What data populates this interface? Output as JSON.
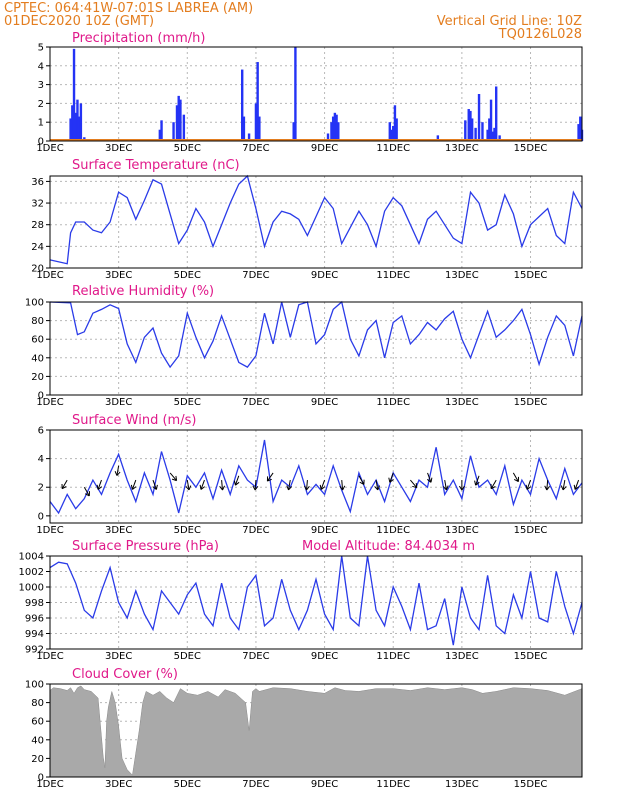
{
  "header": {
    "line1": "CPTEC:   064:41W-07:01S   LABREA (AM)",
    "line2": "01DEC2020 10Z (GMT)",
    "right1": "Vertical Grid Line: 10Z",
    "right2": "TQ0126L028"
  },
  "chart_data": [
    {
      "id": "precip",
      "type": "bar",
      "title": "Precipitation (mm/h)",
      "ylim": [
        0,
        5
      ],
      "yticks": [
        0,
        1,
        2,
        3,
        4,
        5
      ],
      "xlim": [
        0,
        15.5
      ],
      "xtick_labels": [
        "1DEC",
        "3DEC",
        "5DEC",
        "7DEC",
        "9DEC",
        "11DEC",
        "13DEC",
        "15DEC"
      ],
      "xtick_positions": [
        0,
        2,
        4,
        6,
        8,
        10,
        12,
        14
      ],
      "x": [
        0.6,
        0.65,
        0.7,
        0.75,
        0.8,
        0.85,
        0.9,
        1.0,
        1.05,
        3.2,
        3.25,
        3.6,
        3.7,
        3.75,
        3.8,
        3.9,
        5.6,
        5.65,
        5.8,
        6.0,
        6.05,
        6.1,
        6.5,
        7.1,
        7.15,
        8.1,
        8.2,
        8.25,
        8.3,
        8.35,
        8.4,
        9.9,
        9.95,
        10.0,
        10.05,
        10.1,
        11.3,
        12.1,
        12.2,
        12.25,
        12.3,
        12.4,
        12.5,
        12.6,
        12.75,
        12.8,
        12.85,
        12.9,
        12.95,
        13.0,
        13.1,
        13.3,
        13.35,
        13.4,
        13.6,
        13.7,
        15.4,
        15.45,
        15.5
      ],
      "values": [
        1.2,
        1.9,
        4.9,
        1.5,
        2.2,
        1.3,
        2.0,
        0.2,
        0.1,
        0.6,
        1.1,
        1.0,
        1.9,
        2.4,
        2.2,
        1.4,
        3.8,
        1.3,
        0.4,
        2.0,
        4.2,
        1.3,
        0.1,
        1.0,
        5.0,
        0.4,
        1.0,
        1.3,
        1.5,
        1.4,
        1.0,
        1.0,
        0.6,
        0.8,
        1.9,
        1.2,
        0.3,
        1.1,
        1.7,
        1.6,
        1.2,
        0.7,
        2.5,
        1.0,
        0.6,
        1.2,
        2.2,
        0.5,
        0.7,
        2.9,
        0.3,
        0.1,
        0.1,
        0.1,
        0.1,
        0.1,
        0.9,
        1.3,
        0.6
      ]
    },
    {
      "id": "temp",
      "type": "line",
      "title": "Surface Temperature (nC)",
      "ylim": [
        20,
        37
      ],
      "yticks": [
        20,
        24,
        28,
        32,
        36
      ],
      "xlim": [
        0,
        15.5
      ],
      "xtick_labels": [
        "1DEC",
        "3DEC",
        "5DEC",
        "7DEC",
        "9DEC",
        "11DEC",
        "13DEC",
        "15DEC"
      ],
      "xtick_positions": [
        0,
        2,
        4,
        6,
        8,
        10,
        12,
        14
      ],
      "x": [
        0,
        0.5,
        0.6,
        0.75,
        1.0,
        1.25,
        1.5,
        1.75,
        2.0,
        2.25,
        2.5,
        2.75,
        3.0,
        3.25,
        3.5,
        3.75,
        4.0,
        4.25,
        4.5,
        4.75,
        5.0,
        5.25,
        5.5,
        5.75,
        6.0,
        6.25,
        6.5,
        6.75,
        7.0,
        7.25,
        7.5,
        7.75,
        8.0,
        8.25,
        8.5,
        8.75,
        9.0,
        9.25,
        9.5,
        9.75,
        10.0,
        10.25,
        10.5,
        10.75,
        11.0,
        11.25,
        11.5,
        11.75,
        12.0,
        12.25,
        12.5,
        12.75,
        13.0,
        13.25,
        13.5,
        13.75,
        14.0,
        14.25,
        14.5,
        14.75,
        15.0,
        15.25,
        15.5
      ],
      "y": [
        21.5,
        20.8,
        26.5,
        28.5,
        28.5,
        27.0,
        26.5,
        28.5,
        34.0,
        33.0,
        29.0,
        32.5,
        36.3,
        35.5,
        30.0,
        24.5,
        27.0,
        31.0,
        28.5,
        24.0,
        28.0,
        32.0,
        35.5,
        37.0,
        31.0,
        24.0,
        28.5,
        30.5,
        30.0,
        29.0,
        26.0,
        29.5,
        33.0,
        31.0,
        24.5,
        27.5,
        30.5,
        28.0,
        24.0,
        30.5,
        33.0,
        31.5,
        28.0,
        24.5,
        29.0,
        30.5,
        28.0,
        25.5,
        24.5,
        34.0,
        32.0,
        27.0,
        28.0,
        33.5,
        30.0,
        24.0,
        28.0,
        29.5,
        31.0,
        26.0,
        24.5,
        34.0,
        31.0
      ]
    },
    {
      "id": "rh",
      "type": "line",
      "title": "Relative Humidity (%)",
      "ylim": [
        0,
        100
      ],
      "yticks": [
        0,
        20,
        40,
        60,
        80,
        100
      ],
      "xlim": [
        0,
        15.5
      ],
      "xtick_labels": [
        "1DEC",
        "3DEC",
        "5DEC",
        "7DEC",
        "9DEC",
        "11DEC",
        "13DEC",
        "15DEC"
      ],
      "xtick_positions": [
        0,
        2,
        4,
        6,
        8,
        10,
        12,
        14
      ],
      "x": [
        0,
        0.6,
        0.8,
        1.0,
        1.25,
        1.5,
        1.75,
        2.0,
        2.25,
        2.5,
        2.75,
        3.0,
        3.25,
        3.5,
        3.75,
        4.0,
        4.25,
        4.5,
        4.75,
        5.0,
        5.25,
        5.5,
        5.75,
        6.0,
        6.25,
        6.5,
        6.75,
        7.0,
        7.25,
        7.5,
        7.75,
        8.0,
        8.25,
        8.5,
        8.75,
        9.0,
        9.25,
        9.5,
        9.75,
        10.0,
        10.25,
        10.5,
        10.75,
        11.0,
        11.25,
        11.5,
        11.75,
        12.0,
        12.25,
        12.5,
        12.75,
        13.0,
        13.25,
        13.5,
        13.75,
        14.0,
        14.25,
        14.5,
        14.75,
        15.0,
        15.25,
        15.5
      ],
      "y": [
        100,
        99,
        65,
        68,
        88,
        92,
        97,
        93,
        55,
        35,
        62,
        72,
        45,
        30,
        42,
        88,
        62,
        40,
        58,
        85,
        60,
        35,
        30,
        42,
        88,
        55,
        100,
        62,
        97,
        100,
        55,
        65,
        92,
        100,
        60,
        42,
        70,
        80,
        40,
        78,
        85,
        55,
        65,
        78,
        70,
        82,
        90,
        60,
        40,
        65,
        90,
        62,
        70,
        80,
        92,
        65,
        33,
        62,
        85,
        75,
        42,
        85
      ]
    },
    {
      "id": "wind",
      "type": "line",
      "title": "Surface Wind (m/s)",
      "ylim": [
        -0.5,
        6
      ],
      "yticks": [
        0,
        2,
        4,
        6
      ],
      "xlim": [
        0,
        15.5
      ],
      "xtick_labels": [
        "1DEC",
        "3DEC",
        "5DEC",
        "7DEC",
        "9DEC",
        "11DEC",
        "13DEC",
        "15DEC"
      ],
      "xtick_positions": [
        0,
        2,
        4,
        6,
        8,
        10,
        12,
        14
      ],
      "x": [
        0,
        0.25,
        0.5,
        0.75,
        1.0,
        1.25,
        1.5,
        1.75,
        2.0,
        2.25,
        2.5,
        2.75,
        3.0,
        3.25,
        3.5,
        3.75,
        4.0,
        4.25,
        4.5,
        4.75,
        5.0,
        5.25,
        5.5,
        5.75,
        6.0,
        6.25,
        6.5,
        6.75,
        7.0,
        7.25,
        7.5,
        7.75,
        8.0,
        8.25,
        8.5,
        8.75,
        9.0,
        9.25,
        9.5,
        9.75,
        10.0,
        10.25,
        10.5,
        10.75,
        11.0,
        11.25,
        11.5,
        11.75,
        12.0,
        12.25,
        12.5,
        12.75,
        13.0,
        13.25,
        13.5,
        13.75,
        14.0,
        14.25,
        14.5,
        14.75,
        15.0,
        15.25,
        15.5
      ],
      "y": [
        1.0,
        0.2,
        1.5,
        0.5,
        1.2,
        2.5,
        1.5,
        3.0,
        4.3,
        2.5,
        1.0,
        3.0,
        1.5,
        4.5,
        2.5,
        0.2,
        2.8,
        2.0,
        3.0,
        1.2,
        3.2,
        1.5,
        3.5,
        2.5,
        2.0,
        5.3,
        1.0,
        2.5,
        2.0,
        3.5,
        1.5,
        2.2,
        1.5,
        3.5,
        1.8,
        0.3,
        3.0,
        1.5,
        2.5,
        1.0,
        3.0,
        2.0,
        1.0,
        2.5,
        2.0,
        4.8,
        1.5,
        2.5,
        1.2,
        4.2,
        2.0,
        2.5,
        1.5,
        3.5,
        0.8,
        2.5,
        1.5,
        4.0,
        2.5,
        1.2,
        3.3,
        1.5,
        2.3
      ],
      "barbs_x": [
        0.5,
        1.0,
        1.5,
        2.0,
        2.5,
        3.0,
        3.5,
        4.0,
        4.5,
        5.0,
        5.5,
        6.0,
        6.5,
        7.0,
        7.5,
        8.0,
        8.5,
        9.0,
        9.5,
        10.0,
        10.5,
        11.0,
        11.5,
        12.0,
        12.5,
        13.0,
        13.5,
        14.0,
        14.5,
        15.0,
        15.4
      ],
      "barbs_y": [
        2.5,
        2.0,
        2.5,
        3.5,
        2.5,
        2.5,
        3.0,
        2.5,
        2.5,
        2.5,
        2.8,
        2.5,
        3.0,
        2.5,
        2.5,
        2.5,
        2.5,
        2.8,
        2.5,
        3.0,
        2.5,
        3.0,
        2.5,
        2.5,
        2.8,
        2.5,
        3.0,
        2.5,
        2.5,
        2.5,
        2.5
      ],
      "barbs_dir": [
        210,
        150,
        200,
        190,
        200,
        160,
        140,
        170,
        200,
        175,
        200,
        185,
        215,
        190,
        185,
        200,
        175,
        150,
        170,
        200,
        140,
        160,
        170,
        180,
        200,
        210,
        150,
        200,
        185,
        190,
        200
      ]
    },
    {
      "id": "pres",
      "type": "line",
      "title": "Surface Pressure (hPa)",
      "subtitle": "Model Altitude: 84.4034 m",
      "ylim": [
        992,
        1004
      ],
      "yticks": [
        992,
        994,
        996,
        998,
        1000,
        1002,
        1004
      ],
      "xlim": [
        0,
        15.5
      ],
      "xtick_labels": [
        "1DEC",
        "3DEC",
        "5DEC",
        "7DEC",
        "9DEC",
        "11DEC",
        "13DEC",
        "15DEC"
      ],
      "xtick_positions": [
        0,
        2,
        4,
        6,
        8,
        10,
        12,
        14
      ],
      "x": [
        0,
        0.25,
        0.5,
        0.75,
        1.0,
        1.25,
        1.5,
        1.75,
        2.0,
        2.25,
        2.5,
        2.75,
        3.0,
        3.25,
        3.5,
        3.75,
        4.0,
        4.25,
        4.5,
        4.75,
        5.0,
        5.25,
        5.5,
        5.75,
        6.0,
        6.25,
        6.5,
        6.75,
        7.0,
        7.25,
        7.5,
        7.75,
        8.0,
        8.25,
        8.5,
        8.75,
        9.0,
        9.25,
        9.5,
        9.75,
        10.0,
        10.25,
        10.5,
        10.75,
        11.0,
        11.25,
        11.5,
        11.75,
        12.0,
        12.25,
        12.5,
        12.75,
        13.0,
        13.25,
        13.5,
        13.75,
        14.0,
        14.25,
        14.5,
        14.75,
        15.0,
        15.25,
        15.5
      ],
      "y": [
        1002.5,
        1003.2,
        1003.0,
        1000.5,
        997.0,
        996.0,
        999.5,
        1002.5,
        998.0,
        996.0,
        999.5,
        996.5,
        994.5,
        999.5,
        998.0,
        996.5,
        999.0,
        1000.5,
        996.5,
        995.0,
        1000.5,
        996.0,
        994.5,
        1000.0,
        1001.5,
        995.0,
        996.0,
        1001.0,
        997.0,
        994.5,
        997.0,
        1001.0,
        996.5,
        994.5,
        1004.0,
        996.0,
        995.0,
        1004.0,
        997.0,
        995.0,
        1000.0,
        997.5,
        994.5,
        1000.5,
        994.5,
        995.0,
        998.5,
        992.5,
        1000.0,
        996.0,
        994.5,
        1001.5,
        995.0,
        994.0,
        999.0,
        996.0,
        1002.0,
        996.0,
        995.5,
        1002.0,
        997.5,
        994.0,
        998.0
      ]
    },
    {
      "id": "cloud",
      "type": "area",
      "title": "Cloud Cover (%)",
      "ylim": [
        0,
        100
      ],
      "yticks": [
        0,
        20,
        40,
        60,
        80,
        100
      ],
      "xlim": [
        0,
        15.5
      ],
      "xtick_labels": [
        "1DEC",
        "3DEC",
        "5DEC",
        "7DEC",
        "9DEC",
        "11DEC",
        "13DEC",
        "15DEC"
      ],
      "xtick_positions": [
        0,
        2,
        4,
        6,
        8,
        10,
        12,
        14
      ],
      "x": [
        0,
        0.1,
        0.3,
        0.5,
        0.6,
        0.7,
        0.8,
        0.9,
        1.0,
        1.2,
        1.4,
        1.55,
        1.6,
        1.65,
        1.7,
        1.8,
        1.9,
        2.0,
        2.1,
        2.25,
        2.4,
        2.6,
        2.7,
        2.8,
        3.0,
        3.2,
        3.4,
        3.6,
        3.8,
        4.0,
        4.3,
        4.6,
        4.9,
        5.1,
        5.4,
        5.7,
        5.8,
        5.9,
        6.0,
        6.1,
        6.5,
        7.0,
        7.5,
        8.0,
        8.3,
        8.6,
        9.0,
        9.5,
        10.0,
        10.5,
        11.0,
        11.5,
        12.0,
        12.3,
        12.6,
        13.0,
        13.5,
        14.0,
        14.5,
        15.0,
        15.5
      ],
      "y": [
        93,
        96,
        95,
        93,
        96,
        90,
        96,
        98,
        94,
        92,
        85,
        22,
        10,
        60,
        75,
        92,
        80,
        55,
        20,
        8,
        2,
        50,
        80,
        92,
        88,
        92,
        85,
        80,
        95,
        90,
        88,
        92,
        86,
        94,
        90,
        80,
        50,
        92,
        95,
        92,
        96,
        95,
        92,
        90,
        96,
        93,
        92,
        95,
        95,
        93,
        96,
        94,
        96,
        94,
        90,
        92,
        96,
        95,
        93,
        88,
        95
      ]
    }
  ]
}
